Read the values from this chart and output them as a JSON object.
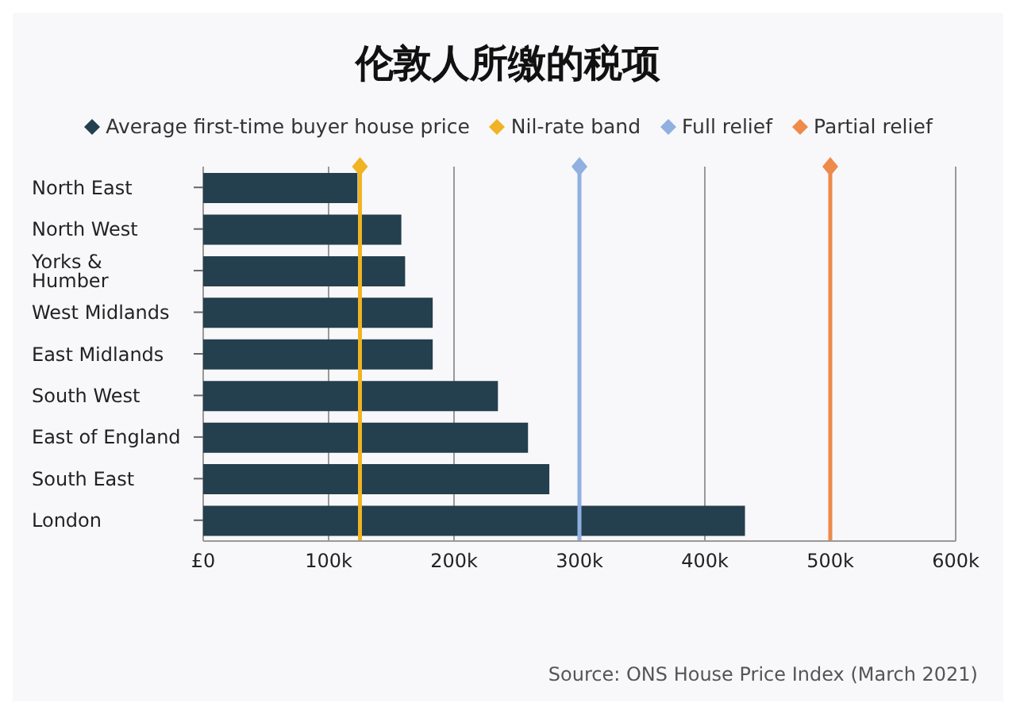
{
  "chart_data": {
    "type": "bar",
    "orientation": "horizontal",
    "title": "伦敦人所缴的税项",
    "categories": [
      "North East",
      "North West",
      "Yorks & Humber",
      "West Midlands",
      "East Midlands",
      "South West",
      "East of England",
      "South East",
      "London"
    ],
    "series": [
      {
        "name": "Average first-time buyer house price",
        "color": "#243f4e",
        "values": [
          123000,
          158000,
          161000,
          183000,
          183000,
          235000,
          259000,
          276000,
          432000
        ]
      }
    ],
    "xlim": [
      0,
      600000
    ],
    "xticks": [
      {
        "value": 0,
        "label": "£0"
      },
      {
        "value": 100000,
        "label": "100k"
      },
      {
        "value": 200000,
        "label": "200k"
      },
      {
        "value": 300000,
        "label": "300k"
      },
      {
        "value": 400000,
        "label": "400k"
      },
      {
        "value": 500000,
        "label": "500k"
      },
      {
        "value": 600000,
        "label": "600k"
      }
    ],
    "ref_lines": [
      {
        "axis": "x",
        "value": 125000,
        "label": "Nil-rate band",
        "color": "#f0b323"
      },
      {
        "axis": "x",
        "value": 300000,
        "label": "Full relief",
        "color": "#8fb0e0"
      },
      {
        "axis": "x",
        "value": 500000,
        "label": "Partial relief",
        "color": "#ee8a4a"
      }
    ],
    "grid": "x",
    "legend": "top",
    "annotations": [
      "Source: ONS House Price Index (March 2021)"
    ]
  }
}
